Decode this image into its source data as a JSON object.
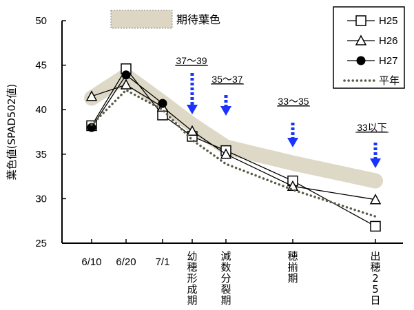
{
  "chart_data": {
    "type": "line",
    "title": "",
    "ylabel": "葉色値(SPAD502値)",
    "xlabel": "",
    "ylim": [
      25,
      50
    ],
    "yticks": [
      25,
      30,
      35,
      40,
      45,
      50
    ],
    "x_ticks": [
      {
        "key": "jun10",
        "label": "6/10"
      },
      {
        "key": "jun20",
        "label": "6/20"
      },
      {
        "key": "jul1",
        "label": "7/1"
      },
      {
        "key": "youho",
        "label": "幼穂形成期"
      },
      {
        "key": "gensu",
        "label": "減数分裂期"
      },
      {
        "key": "hozoroi",
        "label": "穂揃期"
      },
      {
        "key": "shussui25",
        "label": "出穂25日"
      }
    ],
    "series": [
      {
        "name": "H25",
        "marker": "square",
        "color": "#000000",
        "points": [
          [
            "jun10",
            38.2
          ],
          [
            "jun20",
            44.6
          ],
          [
            "jul1",
            39.4
          ],
          [
            "youho",
            37.0
          ],
          [
            "gensu",
            35.4
          ],
          [
            "hozoroi",
            32.0
          ],
          [
            "shussui25",
            26.9
          ]
        ]
      },
      {
        "name": "H26",
        "marker": "triangle",
        "color": "#000000",
        "points": [
          [
            "jun10",
            41.5
          ],
          [
            "jun20",
            42.8
          ],
          [
            "jul1",
            40.3
          ],
          [
            "youho",
            37.6
          ],
          [
            "gensu",
            35.0
          ],
          [
            "hozoroi",
            31.4
          ],
          [
            "shussui25",
            29.9
          ]
        ]
      },
      {
        "name": "H27",
        "marker": "circle",
        "color": "#000000",
        "points": [
          [
            "jun10",
            38.0
          ],
          [
            "jun20",
            43.9
          ],
          [
            "jul1",
            40.7
          ]
        ]
      },
      {
        "name": "平年",
        "marker": "none",
        "style": "dotted",
        "color": "#5a5a46",
        "points": [
          [
            "jun10",
            38.3
          ],
          [
            "jun20",
            42.2
          ],
          [
            "jul1",
            40.0
          ],
          [
            "youho",
            36.6
          ],
          [
            "gensu",
            33.9
          ],
          [
            "hozoroi",
            31.0
          ],
          [
            "shussui25",
            28.0
          ]
        ]
      }
    ],
    "band": {
      "name": "期待葉色",
      "color": "#dcd6c3",
      "points": [
        [
          "jun10",
          41.3
        ],
        [
          "jun20",
          43.8
        ],
        [
          "jul1",
          40.8
        ],
        [
          "youho",
          38.3
        ],
        [
          "gensu",
          35.8
        ],
        [
          "hozoroi",
          34.0
        ],
        [
          "shussui25",
          32.0
        ]
      ]
    },
    "annotations": [
      {
        "text": "37～39",
        "at": "youho",
        "value": 38
      },
      {
        "text": "35～37",
        "at": "gensu",
        "value": 36
      },
      {
        "text": "33～35",
        "at": "hozoroi",
        "value": 34
      },
      {
        "text": "33以下",
        "at": "shussui25",
        "value": 33
      }
    ],
    "legend": {
      "position": "top-right"
    },
    "grid": false
  },
  "colors": {
    "arrow": "#1a33ff",
    "band": "#dcd6c3",
    "normal_line": "#5a5a46"
  }
}
